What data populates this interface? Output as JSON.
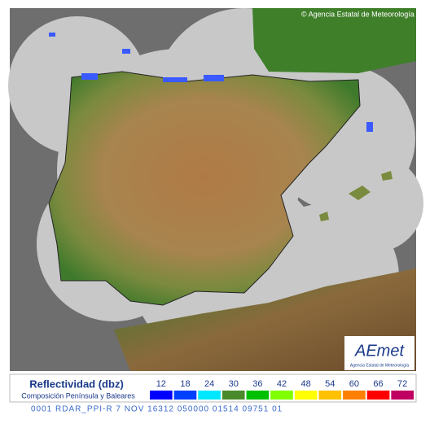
{
  "map": {
    "credit": "© Agencia Estatal de Meteorología",
    "logo": {
      "name": "AEmet",
      "subtitle": "Agencia Estatal de Meteorología"
    },
    "legend": {
      "title": "Reflectividad (dbz)",
      "subtitle": "Composición Península y Baleares",
      "entries": [
        {
          "label": 12,
          "color": "#0000ff"
        },
        {
          "label": 18,
          "color": "#0040ff"
        },
        {
          "label": 24,
          "color": "#00e8ff"
        },
        {
          "label": 30,
          "color": "#4a8a2a"
        },
        {
          "label": 36,
          "color": "#00c000"
        },
        {
          "label": 42,
          "color": "#80ff00"
        },
        {
          "label": 48,
          "color": "#ffff00"
        },
        {
          "label": 54,
          "color": "#ffc000"
        },
        {
          "label": 60,
          "color": "#ff8000"
        },
        {
          "label": 66,
          "color": "#ff0000"
        },
        {
          "label": 72,
          "color": "#c00060"
        }
      ]
    },
    "footer": "0001 RDAR_PPI-R   7 NOV 16312 050000 01514 09751 01"
  }
}
